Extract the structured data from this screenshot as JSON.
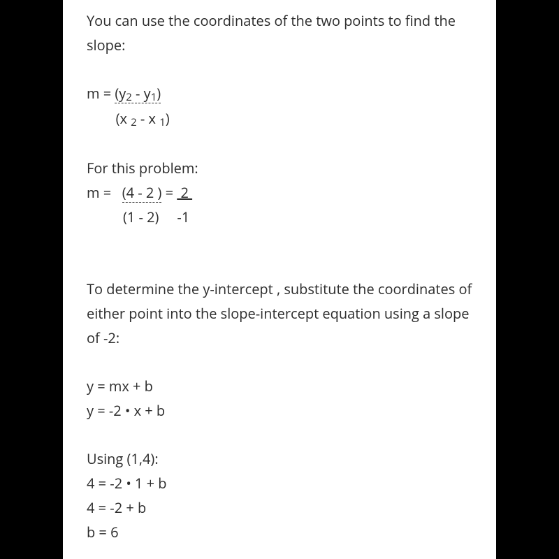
{
  "document": {
    "colors": {
      "page_bg": "#ffffff",
      "outer_bg": "#000000",
      "text": "#2c2c2c"
    },
    "font": {
      "family": "Open Sans / system sans",
      "size_pt": 15,
      "line_height": 1.75
    },
    "intro": "You can use the coordinates of the two points to find the slope:",
    "slope_formula": {
      "prefix": "m = ",
      "num_open": "(y",
      "num_sub1": "2",
      "num_mid": " - y",
      "num_sub2": "1",
      "num_close": ")",
      "den_indent": "        ",
      "den_open": "(x ",
      "den_sub1": "2",
      "den_mid": " - x ",
      "den_sub2": "1",
      "den_close": ")"
    },
    "for_this": "For this problem:",
    "slope_calc": {
      "line1_prefix": "m =   ",
      "line1_num": "(4 - 2 )",
      "line1_eq": " = ",
      "line1_num2": " 2 ",
      "line2": "          (1 - 2)     -1"
    },
    "yint_text": "To determine the y-intercept , substitute the coordinates of either point into the slope-intercept equation using a slope of -2:",
    "eqs1": {
      "a": "y = mx + b",
      "b": "y = -2 • x + b"
    },
    "using": "Using (1,4):",
    "eqs2": {
      "a": "4 = -2 • 1 + b",
      "b": "4 = -2 + b",
      "c": "b = 6"
    }
  }
}
